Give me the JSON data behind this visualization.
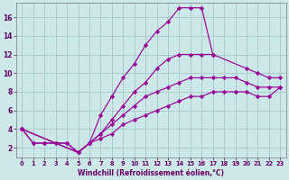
{
  "background_color": "#cce8e8",
  "grid_color": "#aacccc",
  "line_color": "#990099",
  "marker_color": "#990099",
  "xlabel": "Windchill (Refroidissement éolien,°C)",
  "xlim": [
    -0.5,
    23.5
  ],
  "ylim": [
    1.0,
    17.5
  ],
  "yticks": [
    2,
    4,
    6,
    8,
    10,
    12,
    14,
    16
  ],
  "xticks": [
    0,
    1,
    2,
    3,
    4,
    5,
    6,
    7,
    8,
    9,
    10,
    11,
    12,
    13,
    14,
    15,
    16,
    17,
    18,
    19,
    20,
    21,
    22,
    23
  ],
  "line1_x": [
    0,
    1,
    2,
    3,
    4,
    5,
    6,
    7,
    8,
    9,
    10,
    11,
    12,
    13,
    14,
    15,
    16,
    17
  ],
  "line1_y": [
    4.0,
    2.5,
    2.5,
    2.5,
    2.5,
    1.5,
    2.5,
    5.5,
    7.5,
    9.5,
    11.0,
    13.0,
    14.5,
    15.5,
    17.0,
    17.0,
    17.0,
    12.0
  ],
  "line2_x": [
    0,
    1,
    2,
    3,
    4,
    5,
    6,
    7,
    8,
    9,
    10,
    11,
    12,
    13,
    14,
    15,
    16,
    17,
    20,
    21,
    22,
    23
  ],
  "line2_y": [
    4.0,
    2.5,
    2.5,
    2.5,
    2.5,
    1.5,
    2.5,
    3.5,
    5.0,
    6.5,
    8.0,
    9.0,
    10.5,
    11.5,
    12.0,
    12.0,
    12.0,
    12.0,
    10.5,
    10.0,
    9.5,
    9.5
  ],
  "line3_x": [
    0,
    5,
    6,
    7,
    8,
    9,
    10,
    11,
    12,
    13,
    14,
    15,
    16,
    17,
    18,
    19,
    20,
    21,
    22,
    23
  ],
  "line3_y": [
    4.0,
    1.5,
    2.5,
    3.5,
    4.5,
    5.5,
    6.5,
    7.5,
    8.0,
    8.5,
    9.0,
    9.5,
    9.5,
    9.5,
    9.5,
    9.5,
    9.0,
    8.5,
    8.5,
    8.5
  ],
  "line4_x": [
    0,
    5,
    6,
    7,
    8,
    9,
    10,
    11,
    12,
    13,
    14,
    15,
    16,
    17,
    18,
    19,
    20,
    21,
    22,
    23
  ],
  "line4_y": [
    4.0,
    1.5,
    2.5,
    3.0,
    3.5,
    4.5,
    5.0,
    5.5,
    6.0,
    6.5,
    7.0,
    7.5,
    7.5,
    8.0,
    8.0,
    8.0,
    8.0,
    7.5,
    7.5,
    8.5
  ]
}
